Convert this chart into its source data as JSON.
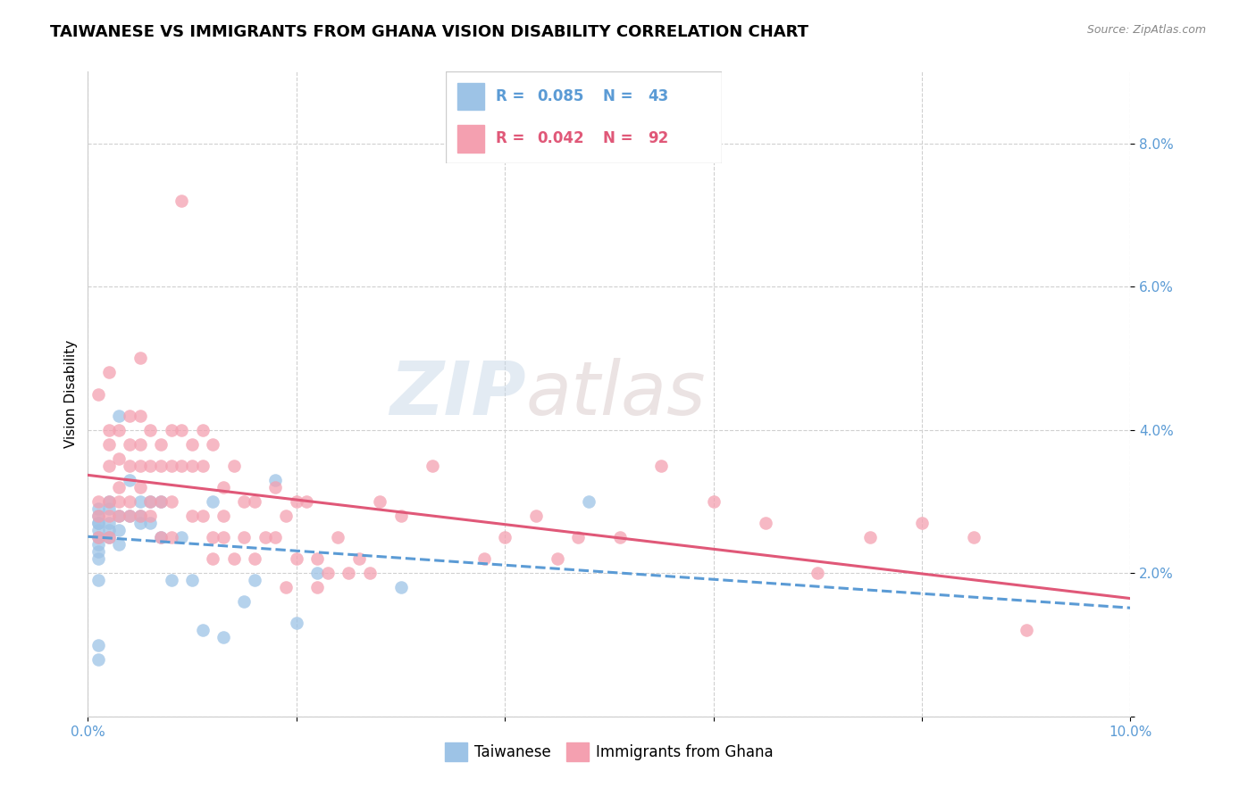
{
  "title": "TAIWANESE VS IMMIGRANTS FROM GHANA VISION DISABILITY CORRELATION CHART",
  "source": "Source: ZipAtlas.com",
  "ylabel": "Vision Disability",
  "watermark": "ZIPatlas",
  "xlim": [
    0.0,
    0.1
  ],
  "ylim": [
    0.0,
    0.09
  ],
  "xticks": [
    0.0,
    0.02,
    0.04,
    0.06,
    0.08,
    0.1
  ],
  "yticks": [
    0.0,
    0.02,
    0.04,
    0.06,
    0.08
  ],
  "ytick_labels": [
    "",
    "2.0%",
    "4.0%",
    "6.0%",
    "8.0%"
  ],
  "xtick_labels": [
    "0.0%",
    "",
    "",
    "",
    "",
    "10.0%"
  ],
  "grid_color": "#d0d0d0",
  "tick_label_color": "#5b9bd5",
  "taiwanese": {
    "R": 0.085,
    "N": 43,
    "dot_color": "#9dc3e6",
    "line_color": "#5b9bd5",
    "label": "Taiwanese",
    "x": [
      0.001,
      0.001,
      0.001,
      0.001,
      0.001,
      0.001,
      0.001,
      0.001,
      0.001,
      0.001,
      0.001,
      0.001,
      0.002,
      0.002,
      0.002,
      0.002,
      0.002,
      0.003,
      0.003,
      0.003,
      0.003,
      0.004,
      0.004,
      0.005,
      0.005,
      0.005,
      0.006,
      0.006,
      0.007,
      0.007,
      0.008,
      0.009,
      0.01,
      0.011,
      0.012,
      0.013,
      0.015,
      0.016,
      0.018,
      0.02,
      0.022,
      0.03,
      0.048
    ],
    "y": [
      0.008,
      0.01,
      0.019,
      0.022,
      0.023,
      0.024,
      0.025,
      0.026,
      0.027,
      0.027,
      0.028,
      0.029,
      0.025,
      0.026,
      0.027,
      0.029,
      0.03,
      0.024,
      0.026,
      0.028,
      0.042,
      0.028,
      0.033,
      0.027,
      0.028,
      0.03,
      0.027,
      0.03,
      0.025,
      0.03,
      0.019,
      0.025,
      0.019,
      0.012,
      0.03,
      0.011,
      0.016,
      0.019,
      0.033,
      0.013,
      0.02,
      0.018,
      0.03
    ]
  },
  "ghana": {
    "R": 0.042,
    "N": 92,
    "dot_color": "#f4a0b0",
    "line_color": "#e05878",
    "label": "Immigrants from Ghana",
    "x": [
      0.001,
      0.001,
      0.001,
      0.001,
      0.002,
      0.002,
      0.002,
      0.002,
      0.002,
      0.002,
      0.002,
      0.003,
      0.003,
      0.003,
      0.003,
      0.003,
      0.004,
      0.004,
      0.004,
      0.004,
      0.004,
      0.005,
      0.005,
      0.005,
      0.005,
      0.005,
      0.005,
      0.006,
      0.006,
      0.006,
      0.006,
      0.007,
      0.007,
      0.007,
      0.007,
      0.008,
      0.008,
      0.008,
      0.008,
      0.009,
      0.009,
      0.009,
      0.01,
      0.01,
      0.01,
      0.011,
      0.011,
      0.011,
      0.012,
      0.012,
      0.012,
      0.013,
      0.013,
      0.013,
      0.014,
      0.014,
      0.015,
      0.015,
      0.016,
      0.016,
      0.017,
      0.018,
      0.018,
      0.019,
      0.019,
      0.02,
      0.02,
      0.021,
      0.022,
      0.022,
      0.023,
      0.024,
      0.025,
      0.026,
      0.027,
      0.028,
      0.03,
      0.033,
      0.038,
      0.04,
      0.043,
      0.045,
      0.047,
      0.051,
      0.055,
      0.06,
      0.065,
      0.07,
      0.075,
      0.08,
      0.085,
      0.09
    ],
    "y": [
      0.045,
      0.03,
      0.028,
      0.025,
      0.048,
      0.04,
      0.038,
      0.035,
      0.03,
      0.028,
      0.025,
      0.04,
      0.036,
      0.032,
      0.03,
      0.028,
      0.042,
      0.038,
      0.035,
      0.03,
      0.028,
      0.05,
      0.042,
      0.038,
      0.035,
      0.032,
      0.028,
      0.04,
      0.035,
      0.03,
      0.028,
      0.038,
      0.035,
      0.03,
      0.025,
      0.04,
      0.035,
      0.03,
      0.025,
      0.04,
      0.072,
      0.035,
      0.038,
      0.035,
      0.028,
      0.04,
      0.035,
      0.028,
      0.038,
      0.025,
      0.022,
      0.032,
      0.028,
      0.025,
      0.035,
      0.022,
      0.03,
      0.025,
      0.03,
      0.022,
      0.025,
      0.032,
      0.025,
      0.028,
      0.018,
      0.03,
      0.022,
      0.03,
      0.022,
      0.018,
      0.02,
      0.025,
      0.02,
      0.022,
      0.02,
      0.03,
      0.028,
      0.035,
      0.022,
      0.025,
      0.028,
      0.022,
      0.025,
      0.025,
      0.035,
      0.03,
      0.027,
      0.02,
      0.025,
      0.027,
      0.025,
      0.012
    ]
  },
  "background_color": "#ffffff",
  "title_fontsize": 13,
  "label_fontsize": 11,
  "tick_fontsize": 11,
  "legend_fontsize": 12
}
